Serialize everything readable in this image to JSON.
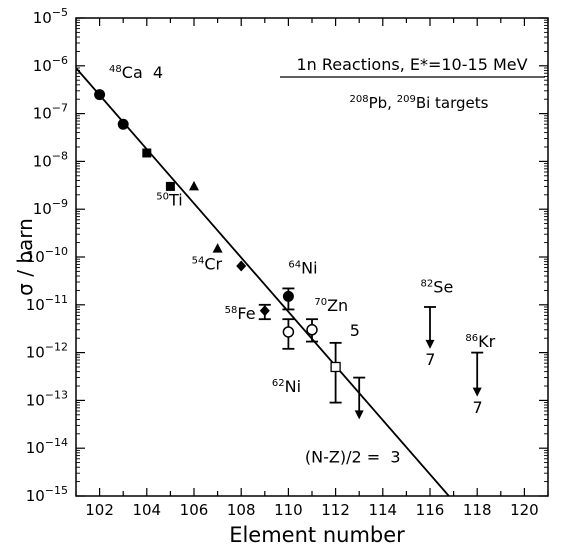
{
  "chart_data": {
    "type": "scatter",
    "title": "1n Reactions, E*=10-15 MeV",
    "subtitle": {
      "segments": [
        {
          "sup": "208"
        },
        {
          "text": "Pb, "
        },
        {
          "sup": "209"
        },
        {
          "text": "Bi targets"
        }
      ]
    },
    "xlabel": "Element number",
    "ylabel": "σ / barn",
    "xlim": [
      101,
      121
    ],
    "ylim_log10": [
      -15,
      -5
    ],
    "yscale": "log",
    "x_ticks": [
      102,
      104,
      106,
      108,
      110,
      112,
      114,
      116,
      118,
      120
    ],
    "y_ticks": [
      {
        "exp": -15,
        "label": "−15"
      },
      {
        "exp": -14,
        "label": "−14"
      },
      {
        "exp": -13,
        "label": "−13"
      },
      {
        "exp": -12,
        "label": "−12"
      },
      {
        "exp": -11,
        "label": "−11"
      },
      {
        "exp": -10,
        "label": "−10"
      },
      {
        "exp": -9,
        "label": "−9"
      },
      {
        "exp": -8,
        "label": "−8"
      },
      {
        "exp": -7,
        "label": "−7"
      },
      {
        "exp": -6,
        "label": "−6"
      },
      {
        "exp": -5,
        "label": "−5"
      }
    ],
    "y_tick_base": "10",
    "series": [
      {
        "projectile": "48Ca",
        "marker": "filled-circle",
        "points": [
          {
            "x": 102,
            "y": 2.5e-07
          },
          {
            "x": 103,
            "y": 6e-08
          },
          {
            "x": 110,
            "y": 1.5e-11,
            "ylow": 8e-12,
            "yhigh": 2.2e-11
          }
        ]
      },
      {
        "projectile": "50Ti",
        "marker": "filled-square",
        "points": [
          {
            "x": 104,
            "y": 1.5e-08
          },
          {
            "x": 105,
            "y": 3e-09
          }
        ]
      },
      {
        "projectile": "54Cr",
        "marker": "filled-triangle",
        "points": [
          {
            "x": 106,
            "y": 3e-09
          },
          {
            "x": 107,
            "y": 1.5e-10
          }
        ]
      },
      {
        "projectile": "58Fe",
        "marker": "filled-diamond",
        "points": [
          {
            "x": 108,
            "y": 6.5e-11
          },
          {
            "x": 109,
            "y": 7.5e-12,
            "ylow": 5e-12,
            "yhigh": 1e-11
          }
        ]
      },
      {
        "projectile": "62Ni",
        "marker": "open-circle",
        "points": [
          {
            "x": 110,
            "y": 2.7e-12,
            "ylow": 1.2e-12,
            "yhigh": 5e-12
          },
          {
            "x": 111,
            "y": 3e-12,
            "ylow": 1.7e-12,
            "yhigh": 5e-12
          }
        ]
      },
      {
        "projectile": "70Zn",
        "marker": "open-square",
        "points": [
          {
            "x": 112,
            "y": 5e-13,
            "ylow": 9e-14,
            "yhigh": 1.6e-12
          }
        ]
      }
    ],
    "upper_limits": [
      {
        "x": 113,
        "y": 3e-13,
        "arrow_to": 4e-14
      },
      {
        "x": 116,
        "y": 9e-12,
        "arrow_to": 1.2e-12
      },
      {
        "x": 118,
        "y": 1e-12,
        "arrow_to": 1.2e-13
      }
    ],
    "fit_line": {
      "x": [
        101,
        116.8
      ],
      "y": [
        9e-07,
        1e-15
      ]
    },
    "annotations": [
      {
        "id": "ca48",
        "sup": "48",
        "text": "Ca",
        "suffix": "  4",
        "x": 102.4,
        "y": 5.5e-07
      },
      {
        "id": "ti50",
        "sup": "50",
        "text": "Ti",
        "x": 104.4,
        "y": 1.2e-09
      },
      {
        "id": "cr54",
        "sup": "54",
        "text": "Cr",
        "x": 105.9,
        "y": 5.5e-11
      },
      {
        "id": "fe58",
        "sup": "58",
        "text": "Fe",
        "x": 107.3,
        "y": 5e-12
      },
      {
        "id": "ni64",
        "sup": "64",
        "text": "Ni",
        "x": 110.0,
        "y": 4.5e-11
      },
      {
        "id": "zn70",
        "sup": "70",
        "text": "Zn",
        "x": 111.1,
        "y": 7.5e-12
      },
      {
        "id": "ni62",
        "sup": "62",
        "text": "Ni",
        "x": 109.3,
        "y": 1.5e-13
      },
      {
        "id": "se82",
        "sup": "82",
        "text": "Se",
        "x": 115.6,
        "y": 1.8e-11
      },
      {
        "id": "kr86",
        "sup": "86",
        "text": "Kr",
        "x": 117.5,
        "y": 1.3e-12
      },
      {
        "id": "n-z",
        "text": "(N-Z)/2 =  3",
        "x": 110.7,
        "y": 5e-15
      },
      {
        "id": "val5",
        "text": "5",
        "x": 112.6,
        "y": 2.2e-12
      },
      {
        "id": "val7a",
        "text": "7",
        "x": 115.8,
        "y": 5.5e-13
      },
      {
        "id": "val7b",
        "text": "7",
        "x": 117.8,
        "y": 5.5e-14
      }
    ]
  }
}
